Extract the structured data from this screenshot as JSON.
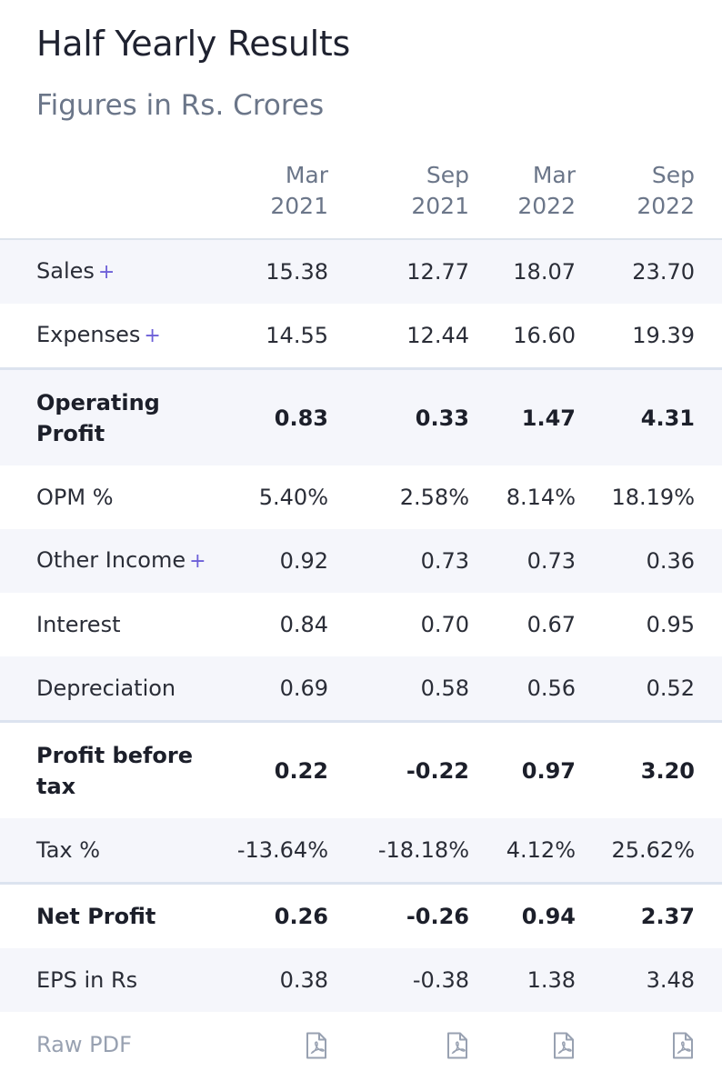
{
  "header": {
    "title": "Half Yearly Results",
    "subtitle": "Figures in Rs. Crores"
  },
  "columns": [
    {
      "month": "Mar",
      "year": "2021"
    },
    {
      "month": "Sep",
      "year": "2021"
    },
    {
      "month": "Mar",
      "year": "2022"
    },
    {
      "month": "Sep",
      "year": "2022"
    }
  ],
  "rows": [
    {
      "label": "Sales",
      "expandable": true,
      "values": [
        "15.38",
        "12.77",
        "18.07",
        "23.70"
      ]
    },
    {
      "label": "Expenses",
      "expandable": true,
      "values": [
        "14.55",
        "12.44",
        "16.60",
        "19.39"
      ]
    },
    {
      "label": "Operating Profit",
      "values": [
        "0.83",
        "0.33",
        "1.47",
        "4.31"
      ]
    },
    {
      "label": "OPM %",
      "values": [
        "5.40%",
        "2.58%",
        "8.14%",
        "18.19%"
      ]
    },
    {
      "label": "Other Income",
      "expandable": true,
      "values": [
        "0.92",
        "0.73",
        "0.73",
        "0.36"
      ]
    },
    {
      "label": "Interest",
      "values": [
        "0.84",
        "0.70",
        "0.67",
        "0.95"
      ]
    },
    {
      "label": "Depreciation",
      "values": [
        "0.69",
        "0.58",
        "0.56",
        "0.52"
      ]
    },
    {
      "label": "Profit before tax",
      "values": [
        "0.22",
        "-0.22",
        "0.97",
        "3.20"
      ]
    },
    {
      "label": "Tax %",
      "values": [
        "-13.64%",
        "-18.18%",
        "4.12%",
        "25.62%"
      ]
    },
    {
      "label": "Net Profit",
      "values": [
        "0.26",
        "-0.26",
        "0.94",
        "2.37"
      ]
    },
    {
      "label": "EPS in Rs",
      "values": [
        "0.38",
        "-0.38",
        "1.38",
        "3.48"
      ]
    }
  ],
  "expand_symbol": "+",
  "raw_pdf_label": "Raw PDF",
  "icons": {
    "pdf": "pdf-file-icon"
  },
  "colors": {
    "accent": "#6d60d8",
    "muted": "#6b7689",
    "shade": "#f5f6fb",
    "divider": "#dce3ef"
  }
}
